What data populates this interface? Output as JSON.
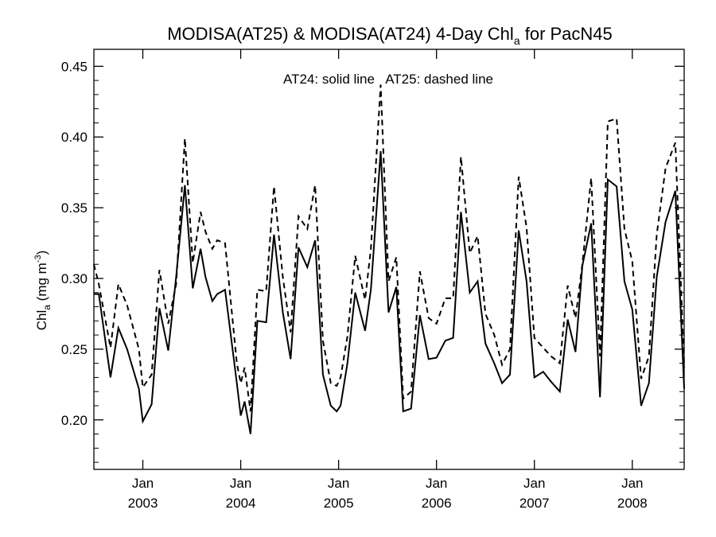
{
  "chart_data": {
    "type": "line",
    "title_main": "MODISA(AT25) & MODISA(AT24) 4-Day Chl",
    "title_sub": "a",
    "title_tail": " for PacN45",
    "ylabel_main": "Chl",
    "ylabel_sub": "a",
    "ylabel_unit": " (mg m",
    "ylabel_sup": "-3",
    "ylabel_close": ")",
    "annotation": "AT24: solid line   AT25: dashed line",
    "xlim": [
      2002.5,
      2008.53
    ],
    "ylim": [
      0.165,
      0.462
    ],
    "yticks": [
      0.2,
      0.25,
      0.3,
      0.35,
      0.4,
      0.45
    ],
    "ytick_labels": [
      "0.20",
      "0.25",
      "0.30",
      "0.35",
      "0.40",
      "0.45"
    ],
    "xticks": [
      {
        "x": 2003.0,
        "month": "Jan",
        "year": "2003"
      },
      {
        "x": 2004.0,
        "month": "Jan",
        "year": "2004"
      },
      {
        "x": 2005.0,
        "month": "Jan",
        "year": "2005"
      },
      {
        "x": 2006.0,
        "month": "Jan",
        "year": "2006"
      },
      {
        "x": 2007.0,
        "month": "Jan",
        "year": "2007"
      },
      {
        "x": 2008.0,
        "month": "Jan",
        "year": "2008"
      }
    ],
    "grid": false,
    "series": [
      {
        "style": "solid",
        "x": [
          2002.5,
          2002.55,
          2002.67,
          2002.75,
          2002.84,
          2002.96,
          2003.0,
          2003.09,
          2003.17,
          2003.26,
          2003.34,
          2003.43,
          2003.51,
          2003.59,
          2003.64,
          2003.71,
          2003.76,
          2003.84,
          2003.96,
          2004.0,
          2004.04,
          2004.1,
          2004.17,
          2004.26,
          2004.34,
          2004.43,
          2004.51,
          2004.59,
          2004.68,
          2004.76,
          2004.84,
          2004.92,
          2004.98,
          2005.02,
          2005.09,
          2005.17,
          2005.27,
          2005.33,
          2005.43,
          2005.51,
          2005.59,
          2005.66,
          2005.74,
          2005.83,
          2005.92,
          2006.0,
          2006.09,
          2006.17,
          2006.25,
          2006.34,
          2006.42,
          2006.5,
          2006.59,
          2006.67,
          2006.75,
          2006.84,
          2006.92,
          2007.0,
          2007.09,
          2007.17,
          2007.26,
          2007.34,
          2007.42,
          2007.49,
          2007.58,
          2007.67,
          2007.75,
          2007.84,
          2007.92,
          2008.0,
          2008.09,
          2008.17,
          2008.25,
          2008.34,
          2008.44,
          2008.53
        ],
        "y": [
          0.289,
          0.289,
          0.23,
          0.265,
          0.25,
          0.222,
          0.199,
          0.211,
          0.279,
          0.249,
          0.301,
          0.366,
          0.293,
          0.321,
          0.301,
          0.284,
          0.289,
          0.292,
          0.226,
          0.203,
          0.213,
          0.19,
          0.27,
          0.269,
          0.331,
          0.276,
          0.243,
          0.322,
          0.308,
          0.327,
          0.232,
          0.21,
          0.206,
          0.21,
          0.24,
          0.29,
          0.263,
          0.292,
          0.39,
          0.276,
          0.294,
          0.206,
          0.208,
          0.274,
          0.243,
          0.244,
          0.256,
          0.258,
          0.347,
          0.29,
          0.298,
          0.254,
          0.24,
          0.226,
          0.232,
          0.334,
          0.298,
          0.23,
          0.234,
          0.227,
          0.22,
          0.271,
          0.248,
          0.309,
          0.339,
          0.216,
          0.37,
          0.365,
          0.298,
          0.278,
          0.21,
          0.226,
          0.301,
          0.34,
          0.362,
          0.222
        ]
      },
      {
        "style": "dashed",
        "x": [
          2002.5,
          2002.55,
          2002.67,
          2002.75,
          2002.84,
          2002.96,
          2003.0,
          2003.09,
          2003.17,
          2003.26,
          2003.34,
          2003.43,
          2003.51,
          2003.59,
          2003.64,
          2003.71,
          2003.76,
          2003.84,
          2003.96,
          2004.0,
          2004.04,
          2004.1,
          2004.17,
          2004.26,
          2004.34,
          2004.43,
          2004.51,
          2004.59,
          2004.68,
          2004.76,
          2004.84,
          2004.92,
          2004.98,
          2005.02,
          2005.09,
          2005.17,
          2005.27,
          2005.33,
          2005.43,
          2005.51,
          2005.59,
          2005.66,
          2005.74,
          2005.83,
          2005.92,
          2006.0,
          2006.09,
          2006.17,
          2006.25,
          2006.34,
          2006.42,
          2006.5,
          2006.59,
          2006.67,
          2006.75,
          2006.84,
          2006.92,
          2007.0,
          2007.09,
          2007.17,
          2007.26,
          2007.34,
          2007.42,
          2007.49,
          2007.58,
          2007.67,
          2007.75,
          2007.84,
          2007.92,
          2008.0,
          2008.09,
          2008.17,
          2008.25,
          2008.34,
          2008.44,
          2008.53
        ],
        "y": [
          0.31,
          0.296,
          0.251,
          0.296,
          0.281,
          0.25,
          0.223,
          0.232,
          0.306,
          0.268,
          0.296,
          0.399,
          0.311,
          0.347,
          0.333,
          0.321,
          0.327,
          0.325,
          0.24,
          0.226,
          0.237,
          0.206,
          0.292,
          0.291,
          0.365,
          0.301,
          0.262,
          0.344,
          0.335,
          0.366,
          0.256,
          0.226,
          0.224,
          0.23,
          0.259,
          0.316,
          0.285,
          0.321,
          0.437,
          0.298,
          0.315,
          0.215,
          0.22,
          0.305,
          0.272,
          0.268,
          0.286,
          0.286,
          0.386,
          0.318,
          0.33,
          0.275,
          0.26,
          0.239,
          0.25,
          0.372,
          0.336,
          0.258,
          0.251,
          0.245,
          0.24,
          0.295,
          0.272,
          0.31,
          0.371,
          0.245,
          0.411,
          0.413,
          0.335,
          0.312,
          0.229,
          0.245,
          0.331,
          0.378,
          0.396,
          0.237
        ]
      }
    ]
  }
}
